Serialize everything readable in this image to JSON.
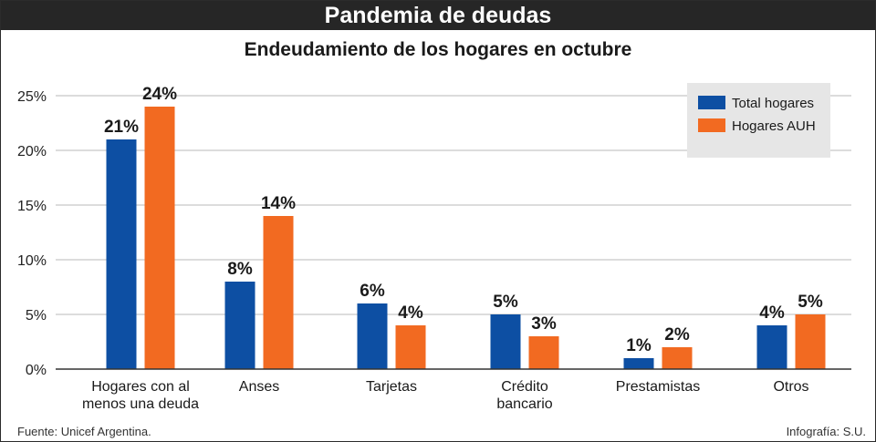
{
  "header": {
    "title": "Pandemia de deudas"
  },
  "footer": {
    "source": "Fuente: Unicef Argentina.",
    "credit": "Infografía: S.U."
  },
  "colors": {
    "total": "#0d4fa3",
    "auh": "#f26a21",
    "legend_bg": "#e6e6e6",
    "header_bg": "#262626"
  },
  "chart_data": {
    "type": "bar",
    "title": "Endeudamiento de los hogares en octubre",
    "xlabel": "",
    "ylabel": "",
    "ylim": [
      0,
      25
    ],
    "yticks": [
      0,
      5,
      10,
      15,
      20,
      25
    ],
    "ytick_labels": [
      "0%",
      "5%",
      "10%",
      "15%",
      "20%",
      "25%"
    ],
    "grid": true,
    "legend_position": "top-right",
    "categories": [
      [
        "Hogares con al",
        "menos una deuda"
      ],
      [
        "Anses"
      ],
      [
        "Tarjetas"
      ],
      [
        "Crédito",
        "bancario"
      ],
      [
        "Prestamistas"
      ],
      [
        "Otros"
      ]
    ],
    "series": [
      {
        "name": "Total hogares",
        "values": [
          21,
          8,
          6,
          5,
          1,
          4
        ],
        "labels": [
          "21%",
          "8%",
          "6%",
          "5%",
          "1%",
          "4%"
        ]
      },
      {
        "name": "Hogares AUH",
        "values": [
          24,
          14,
          4,
          3,
          2,
          5
        ],
        "labels": [
          "24%",
          "14%",
          "4%",
          "3%",
          "2%",
          "5%"
        ]
      }
    ]
  }
}
